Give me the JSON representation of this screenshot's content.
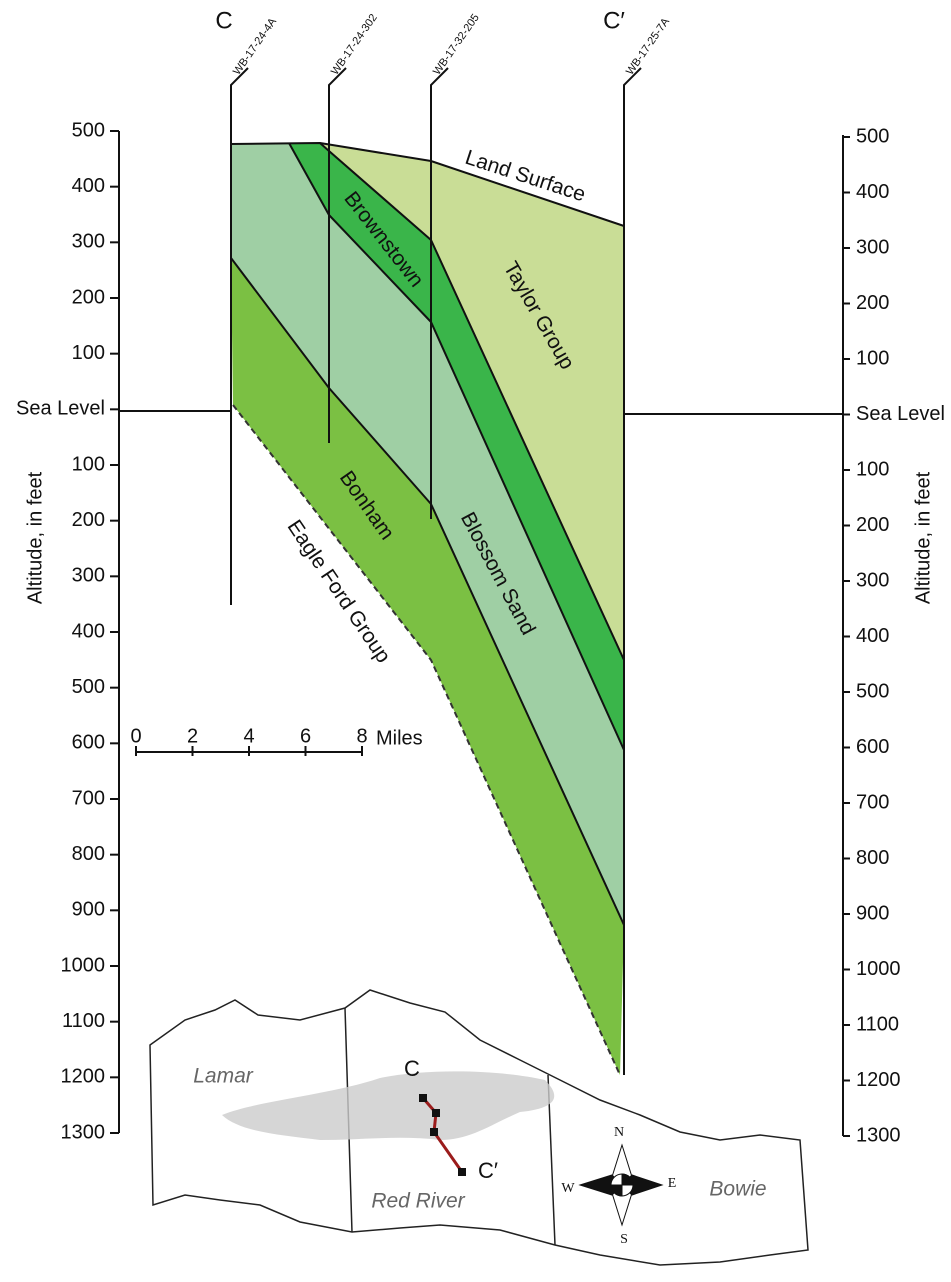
{
  "section": {
    "start_label": "C",
    "end_label": "C′"
  },
  "wells": [
    "WB-17-24-4A",
    "WB-17-24-302",
    "WB-17-32-205",
    "WB-17-25-7A"
  ],
  "axis": {
    "title": "Altitude, in feet",
    "ticks": [
      "500",
      "400",
      "300",
      "200",
      "100",
      "Sea Level",
      "100",
      "200",
      "300",
      "400",
      "500",
      "600",
      "700",
      "800",
      "900",
      "1000",
      "1100",
      "1200",
      "1300"
    ]
  },
  "formations": {
    "land_surface": "Land Surface",
    "taylor": "Taylor Group",
    "brownstown": "Brownstown",
    "blossom": "Blossom Sand",
    "bonham": "Bonham",
    "eagle_ford": "Eagle Ford Group"
  },
  "scale_bar": {
    "ticks": [
      "0",
      "2",
      "4",
      "6",
      "8"
    ],
    "unit": "Miles"
  },
  "map": {
    "counties": [
      "Lamar",
      "Red River",
      "Bowie"
    ],
    "line_start": "C",
    "line_end": "C′",
    "compass": {
      "n": "N",
      "s": "S",
      "e": "E",
      "w": "W"
    }
  }
}
